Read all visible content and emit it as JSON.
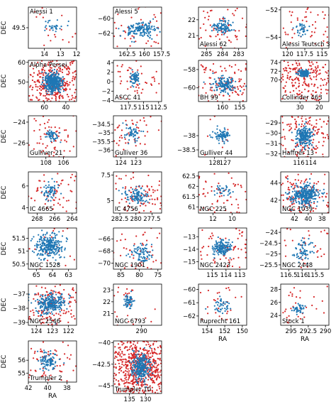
{
  "figure": {
    "xlabel": "RA",
    "ylabel": "DEC"
  },
  "colors": {
    "background": "#d62728",
    "member": "#1f77b4",
    "frame": "#000000"
  },
  "chart_data": [
    {
      "type": "scatter",
      "title": "Alessi 1",
      "xlim": [
        15,
        12
      ],
      "ylim": [
        49.2,
        49.8
      ],
      "xticks": [
        14,
        13,
        12
      ],
      "yticks": [
        49.5
      ],
      "center": [
        13.5,
        49.52
      ],
      "spread_mem": [
        0.35,
        0.05
      ],
      "spread_bg": [
        1.3,
        0.25
      ],
      "n_mem": 30,
      "n_bg": 25
    },
    {
      "type": "scatter",
      "title": "Alessi 5",
      "xlim": [
        164.5,
        157.5
      ],
      "ylim": [
        -64,
        -58.5
      ],
      "xticks": [
        162.5,
        160,
        157.5
      ],
      "yticks": [
        -60,
        -62
      ],
      "center": [
        160.5,
        -61.5
      ],
      "spread_mem": [
        1.2,
        0.5
      ],
      "spread_bg": [
        3.0,
        2.0
      ],
      "n_mem": 150,
      "n_bg": 45
    },
    {
      "type": "scatter",
      "title": "Alessi 62",
      "xlim": [
        285.5,
        282.5
      ],
      "ylim": [
        20.2,
        22.8
      ],
      "xticks": [
        285,
        284,
        283
      ],
      "yticks": [
        22,
        21
      ],
      "center": [
        284,
        21.5
      ],
      "spread_mem": [
        0.3,
        0.25
      ],
      "spread_bg": [
        1.3,
        0.9
      ],
      "n_mem": 90,
      "n_bg": 70
    },
    {
      "type": "scatter",
      "title": "Alessi Teutsch 3",
      "xlim": [
        121,
        114
      ],
      "ylim": [
        -54.8,
        -51.8
      ],
      "xticks": [
        120,
        117.5,
        115
      ],
      "yticks": [
        -52,
        -54
      ],
      "center": [
        118,
        -53.5
      ],
      "spread_mem": [
        0.5,
        0.3
      ],
      "spread_bg": [
        2.8,
        1.2
      ],
      "n_mem": 35,
      "n_bg": 60
    },
    {
      "type": "scatter",
      "title": "Alpha Persei",
      "xlim": [
        75,
        30
      ],
      "ylim": [
        40,
        61
      ],
      "xticks": [
        60,
        40
      ],
      "yticks": [
        60,
        50
      ],
      "center": [
        52,
        49.5
      ],
      "spread_mem": [
        4,
        2.3
      ],
      "spread_bg": [
        12,
        6
      ],
      "n_mem": 400,
      "n_bg": 320
    },
    {
      "type": "scatter",
      "title": "ASCC 41",
      "xlim": [
        120,
        112
      ],
      "ylim": [
        -4.2,
        4.5
      ],
      "xticks": [
        117.5,
        115,
        112.5
      ],
      "yticks": [
        4,
        2,
        0,
        -2,
        -4
      ],
      "center": [
        116.5,
        0.5
      ],
      "spread_mem": [
        0.4,
        0.8
      ],
      "spread_bg": [
        2.2,
        2.4
      ],
      "n_mem": 60,
      "n_bg": 55
    },
    {
      "type": "scatter",
      "title": "BH 99",
      "xlim": [
        167,
        153
      ],
      "ylim": [
        -61.5,
        -57
      ],
      "xticks": [
        160,
        155
      ],
      "yticks": [
        -58,
        -60
      ],
      "center": [
        159.5,
        -59.7
      ],
      "spread_mem": [
        1.5,
        0.4
      ],
      "spread_bg": [
        4.0,
        1.2
      ],
      "n_mem": 130,
      "n_bg": 110
    },
    {
      "type": "scatter",
      "title": "Collinder 463",
      "xlim": [
        40,
        15
      ],
      "ylim": [
        65,
        74.5
      ],
      "xticks": [
        30,
        20
      ],
      "yticks": [
        74,
        72,
        70
      ],
      "center": [
        28,
        71.5
      ],
      "spread_mem": [
        1.5,
        0.4
      ],
      "spread_bg": [
        8,
        2.5
      ],
      "n_mem": 120,
      "n_bg": 220
    },
    {
      "type": "scatter",
      "title": "Gulliver 21",
      "xlim": [
        110,
        104.5
      ],
      "ylim": [
        -27.3,
        -23.4
      ],
      "xticks": [
        108,
        106
      ],
      "yticks": [
        -24,
        -26
      ],
      "center": [
        107.3,
        -25.3
      ],
      "spread_mem": [
        0.35,
        0.3
      ],
      "spread_bg": [
        1.6,
        1.1
      ],
      "n_mem": 55,
      "n_bg": 65
    },
    {
      "type": "scatter",
      "title": "Gulliver 36",
      "xlim": [
        124.5,
        121.3
      ],
      "ylim": [
        -36.4,
        -34
      ],
      "xticks": [
        124,
        123
      ],
      "yticks": [
        -34.5,
        -35,
        -35.5,
        -36
      ],
      "center": [
        123.2,
        -35.0
      ],
      "spread_mem": [
        0.25,
        0.2
      ],
      "spread_bg": [
        0.9,
        0.6
      ],
      "n_mem": 55,
      "n_bg": 50
    },
    {
      "type": "scatter",
      "title": "Gulliver 44",
      "xlim": [
        129.5,
        125
      ],
      "ylim": [
        -38.75,
        -37.3
      ],
      "xticks": [
        128,
        127
      ],
      "yticks": [
        -38,
        -38.5
      ],
      "center": [
        127.3,
        -38.0
      ],
      "spread_mem": [
        0.4,
        0.13
      ],
      "spread_bg": [
        1.1,
        0.4
      ],
      "n_mem": 75,
      "n_bg": 10
    },
    {
      "type": "scatter",
      "title": "Haffner 13",
      "xlim": [
        119,
        111
      ],
      "ylim": [
        -32.3,
        -28.3
      ],
      "xticks": [
        116,
        114
      ],
      "yticks": [
        -29,
        -30,
        -31,
        -32
      ],
      "center": [
        115.2,
        -30.3
      ],
      "spread_mem": [
        0.7,
        0.5
      ],
      "spread_bg": [
        2.3,
        1.3
      ],
      "n_mem": 200,
      "n_bg": 150
    },
    {
      "type": "scatter",
      "title": "IC 4665",
      "xlim": [
        269,
        263.5
      ],
      "ylim": [
        3.5,
        7.3
      ],
      "xticks": [
        268,
        266,
        264
      ],
      "yticks": [
        6,
        4
      ],
      "center": [
        266.5,
        5.6
      ],
      "spread_mem": [
        0.4,
        0.4
      ],
      "spread_bg": [
        1.5,
        1.1
      ],
      "n_mem": 60,
      "n_bg": 60
    },
    {
      "type": "scatter",
      "title": "IC 4756",
      "xlim": [
        283.5,
        276
      ],
      "ylim": [
        3.8,
        7.8
      ],
      "xticks": [
        282.5,
        280,
        277.5
      ],
      "yticks": [
        7.5,
        5.0
      ],
      "center": [
        279.8,
        5.5
      ],
      "spread_mem": [
        0.9,
        0.4
      ],
      "spread_bg": [
        2.0,
        1.0
      ],
      "n_mem": 100,
      "n_bg": 90
    },
    {
      "type": "scatter",
      "title": "NGC 225",
      "xlim": [
        13.5,
        8.5
      ],
      "ylim": [
        60.7,
        62.7
      ],
      "xticks": [
        12,
        10
      ],
      "yticks": [
        62.5,
        62,
        61.5,
        61
      ],
      "center": [
        11,
        61.8
      ],
      "spread_mem": [
        0.4,
        0.18
      ],
      "spread_bg": [
        1.4,
        0.55
      ],
      "n_mem": 30,
      "n_bg": 55
    },
    {
      "type": "scatter",
      "title": "NGC 1039",
      "xlim": [
        44,
        37
      ],
      "ylim": [
        40.5,
        45.3
      ],
      "xticks": [
        42,
        40,
        38
      ],
      "yticks": [
        44,
        42
      ],
      "center": [
        40.5,
        42.6
      ],
      "spread_mem": [
        1.0,
        0.6
      ],
      "spread_bg": [
        2.0,
        1.4
      ],
      "n_mem": 320,
      "n_bg": 120
    },
    {
      "type": "scatter",
      "title": "NGC 1528",
      "xlim": [
        65.5,
        62.5
      ],
      "ylim": [
        50.3,
        51.9
      ],
      "xticks": [
        65,
        64,
        63
      ],
      "yticks": [
        51.5,
        51,
        50.5
      ],
      "center": [
        64.2,
        51.2
      ],
      "spread_mem": [
        0.45,
        0.25
      ],
      "spread_bg": [
        0.9,
        0.45
      ],
      "n_mem": 260,
      "n_bg": 20
    },
    {
      "type": "scatter",
      "title": "NGC 1901",
      "xlim": [
        87,
        74
      ],
      "ylim": [
        -71,
        -64.2
      ],
      "xticks": [
        85,
        80,
        75
      ],
      "yticks": [
        -66,
        -68,
        -70
      ],
      "center": [
        79.5,
        -68.3
      ],
      "spread_mem": [
        1.3,
        0.7
      ],
      "spread_bg": [
        4,
        2.2
      ],
      "n_mem": 80,
      "n_bg": 50
    },
    {
      "type": "scatter",
      "title": "NGC 2423",
      "xlim": [
        116,
        112.5
      ],
      "ylim": [
        -15.6,
        -12.3
      ],
      "xticks": [
        115,
        114,
        113
      ],
      "yticks": [
        -13,
        -14,
        -15
      ],
      "center": [
        114.3,
        -13.9
      ],
      "spread_mem": [
        0.35,
        0.3
      ],
      "spread_bg": [
        1.2,
        1.0
      ],
      "n_mem": 150,
      "n_bg": 80
    },
    {
      "type": "scatter",
      "title": "NGC 2448",
      "xlim": [
        116.8,
        115
      ],
      "ylim": [
        -25.7,
        -23.8
      ],
      "xticks": [
        116.5,
        116,
        115.5
      ],
      "yticks": [
        -24,
        -24.5,
        -25,
        -25.5
      ],
      "center": [
        116,
        -24.9
      ],
      "spread_mem": [
        0.22,
        0.25
      ],
      "spread_bg": [
        0.55,
        0.5
      ],
      "n_mem": 65,
      "n_bg": 35
    },
    {
      "type": "scatter",
      "title": "NGC 2546",
      "xlim": [
        124.5,
        121.5
      ],
      "ylim": [
        -39.2,
        -36.3
      ],
      "xticks": [
        124,
        123,
        122
      ],
      "yticks": [
        -37,
        -38,
        -39
      ],
      "center": [
        123.1,
        -37.7
      ],
      "spread_mem": [
        0.45,
        0.35
      ],
      "spread_bg": [
        1.0,
        0.8
      ],
      "n_mem": 250,
      "n_bg": 150
    },
    {
      "type": "scatter",
      "title": "NGC 6793",
      "xlim": [
        293.5,
        287.5
      ],
      "ylim": [
        20,
        23.5
      ],
      "xticks": [
        290
      ],
      "yticks": [
        23,
        22,
        21
      ],
      "center": [
        291.5,
        22.0
      ],
      "spread_mem": [
        0.3,
        0.3
      ],
      "spread_bg": [
        1.5,
        0.9
      ],
      "n_mem": 55,
      "n_bg": 30
    },
    {
      "type": "scatter",
      "title": "Ruprecht 161",
      "xlim": [
        155,
        149.5
      ],
      "ylim": [
        -62.7,
        -59.6
      ],
      "xticks": [
        154,
        152,
        150
      ],
      "yticks": [
        -60,
        -61,
        -62
      ],
      "center": [
        152.3,
        -61.3
      ],
      "spread_mem": [
        0.5,
        0.35
      ],
      "spread_bg": [
        1.4,
        0.9
      ],
      "n_mem": 40,
      "n_bg": 30
    },
    {
      "type": "scatter",
      "title": "Stock 1",
      "xlim": [
        296.5,
        289.5
      ],
      "ylim": [
        22.5,
        28.8
      ],
      "xticks": [
        295,
        292.5,
        290
      ],
      "yticks": [
        28,
        26,
        24
      ],
      "center": [
        294,
        25
      ],
      "spread_mem": [
        0.45,
        0.4
      ],
      "spread_bg": [
        1.8,
        1.8
      ],
      "n_mem": 45,
      "n_bg": 35
    },
    {
      "type": "scatter",
      "title": "Trumpler 2",
      "xlim": [
        42,
        37
      ],
      "ylim": [
        54.3,
        57.5
      ],
      "xticks": [
        42,
        40,
        38
      ],
      "yticks": [
        56,
        55
      ],
      "center": [
        40,
        55.9
      ],
      "spread_mem": [
        0.55,
        0.35
      ],
      "spread_bg": [
        1.4,
        0.7
      ],
      "n_mem": 90,
      "n_bg": 60
    },
    {
      "type": "scatter",
      "title": "Trumpler 10",
      "xlim": [
        140,
        125
      ],
      "ylim": [
        -45.9,
        -39.8
      ],
      "xticks": [
        135,
        130
      ],
      "yticks": [
        -40,
        -42.5,
        -45
      ],
      "center": [
        131.5,
        -42.8
      ],
      "spread_mem": [
        1.4,
        0.8
      ],
      "spread_bg": [
        4.0,
        1.4
      ],
      "n_mem": 260,
      "n_bg": 600
    }
  ]
}
